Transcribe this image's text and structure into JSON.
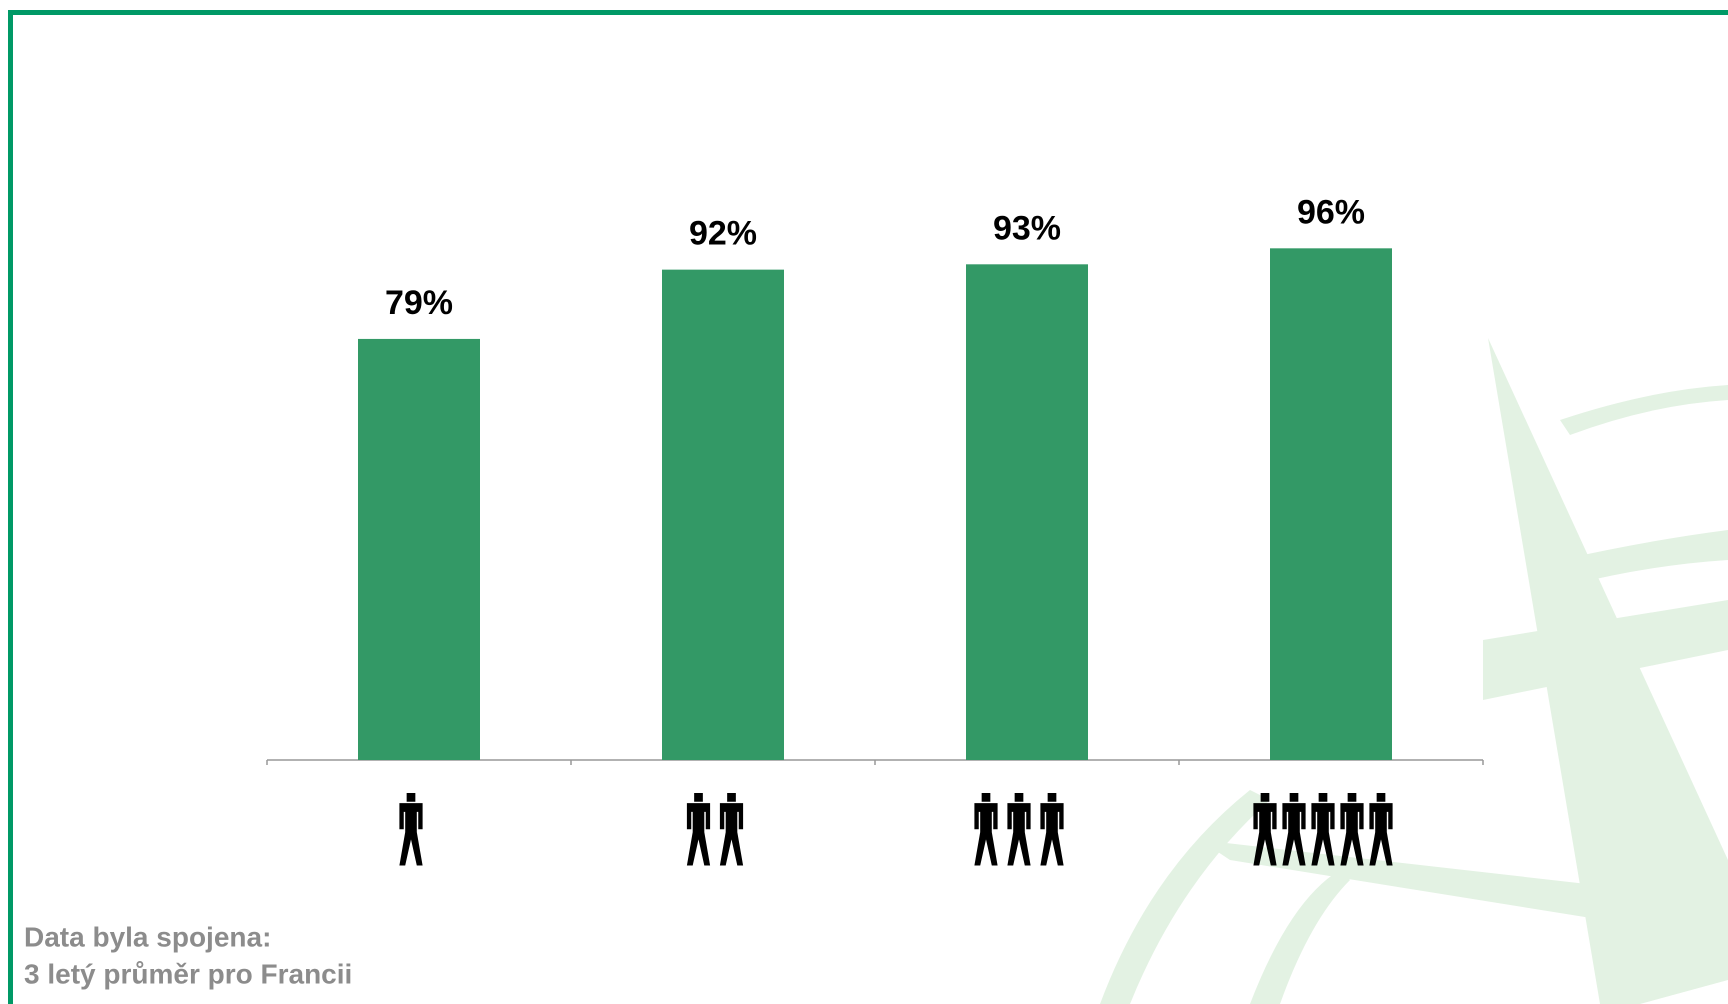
{
  "chart_data": {
    "type": "bar",
    "categories": [
      null,
      null,
      null,
      null
    ],
    "values": [
      79,
      92,
      93,
      96
    ],
    "value_labels": [
      "79%",
      "92%",
      "93%",
      "96%"
    ],
    "color": "#339966",
    "ylim": [
      0,
      100
    ],
    "annotations": [
      "Data byla spojena:",
      "3 letý průměr pro Francii"
    ]
  }
}
